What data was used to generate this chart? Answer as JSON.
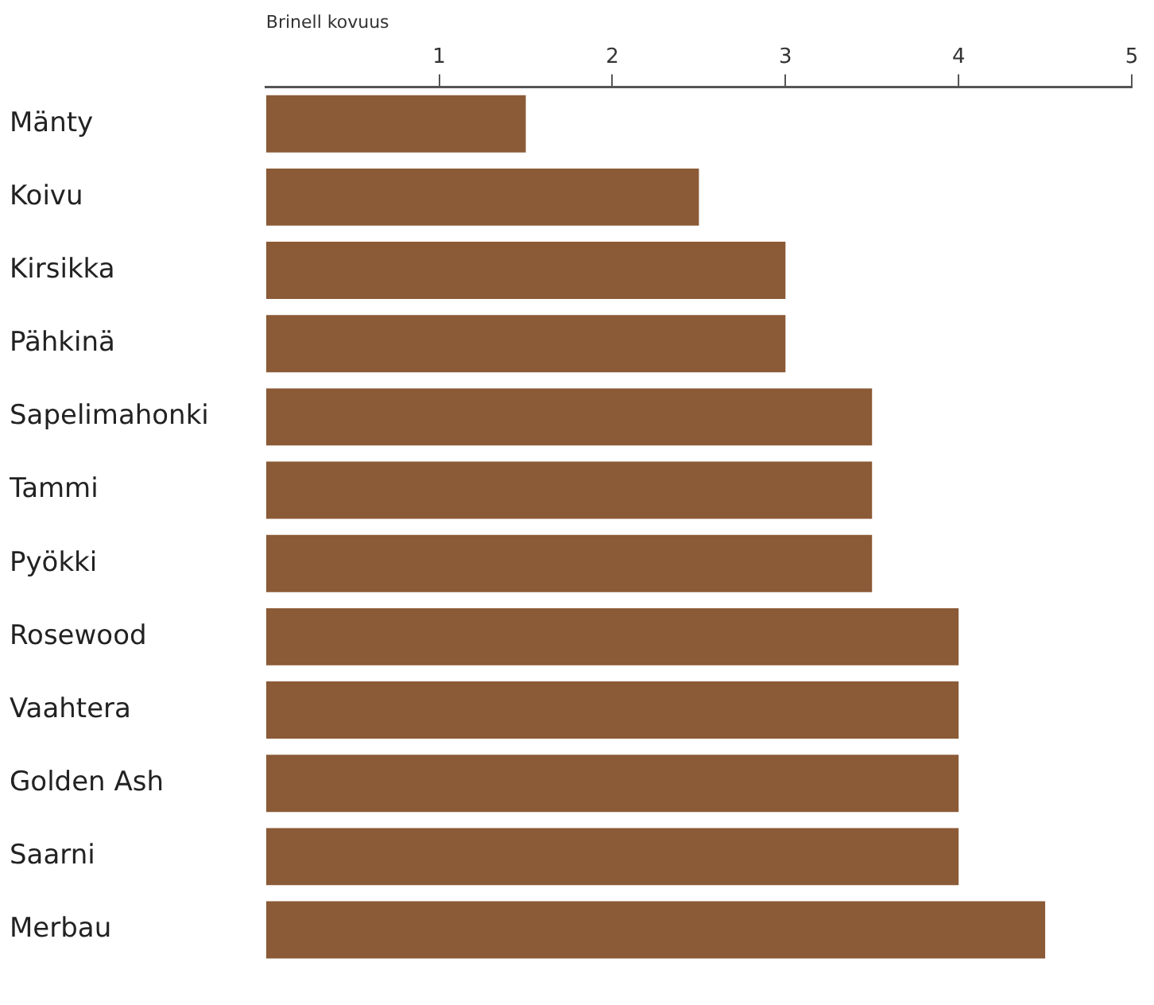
{
  "chart_data": {
    "type": "bar",
    "orientation": "horizontal",
    "xlabel": "Brinell kovuus",
    "categories": [
      "Mänty",
      "Koivu",
      "Kirsikka",
      "Pähkinä",
      "Sapelimahonki",
      "Tammi",
      "Pyökki",
      "Rosewood",
      "Vaahtera",
      "Golden Ash",
      "Saarni",
      "Merbau"
    ],
    "values": [
      1.5,
      2.5,
      3,
      3,
      3.5,
      3.5,
      3.5,
      4,
      4,
      4,
      4,
      4.5
    ],
    "color": "#8b5a36",
    "xlim": [
      0,
      5
    ],
    "xticks": [
      1,
      2,
      3,
      4,
      5
    ]
  }
}
